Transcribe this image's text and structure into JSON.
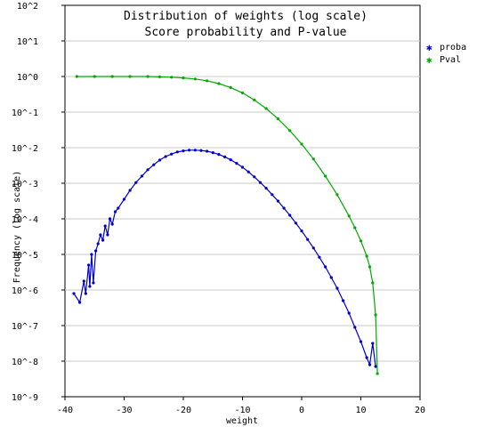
{
  "chart_data": {
    "type": "scatter",
    "title": "Distribution of weights  (log scale)",
    "subtitle": "Score probability and P-value",
    "xlabel": "weight",
    "ylabel": "Frequency (log scale)",
    "xlim": [
      -40,
      20
    ],
    "ylim": [
      -9,
      2
    ],
    "y_log_scale": true,
    "x_ticks": [
      -40,
      -30,
      -20,
      -10,
      0,
      10,
      20
    ],
    "x_tick_labels": [
      "-40",
      "-30",
      "-20",
      "-10",
      "0",
      "10",
      "20"
    ],
    "y_ticks": [
      -9,
      -8,
      -7,
      -6,
      -5,
      -4,
      -3,
      -2,
      -1,
      0,
      1,
      2
    ],
    "y_tick_labels": [
      "10^-9",
      "10^-8",
      "10^-7",
      "10^-6",
      "10^-5",
      "10^-4",
      "10^-3",
      "10^-2",
      "10^-1",
      "10^0",
      "10^1",
      "10^2"
    ],
    "grid": "horizontal",
    "legend_position": "right",
    "series": [
      {
        "name": "proba",
        "color": "#0000cc",
        "x": [
          -38.5,
          -37.5,
          -36.8,
          -36.5,
          -36.0,
          -35.8,
          -35.5,
          -35.2,
          -34.8,
          -34.4,
          -34.0,
          -33.6,
          -33.2,
          -32.8,
          -32.4,
          -32.0,
          -31.5,
          -31.0,
          -30.0,
          -29.0,
          -28.0,
          -27.0,
          -26.0,
          -25.0,
          -24.0,
          -23.0,
          -22.0,
          -21.0,
          -20.0,
          -19.0,
          -18.0,
          -17.0,
          -16.0,
          -15.0,
          -14.0,
          -13.0,
          -12.0,
          -11.0,
          -10.0,
          -9.0,
          -8.0,
          -7.0,
          -6.0,
          -5.0,
          -4.0,
          -3.0,
          -2.0,
          -1.0,
          0.0,
          1.0,
          2.0,
          3.0,
          4.0,
          5.0,
          6.0,
          7.0,
          8.0,
          9.0,
          10.0,
          11.0,
          11.5,
          12.0,
          12.5
        ],
        "y": [
          -6.1,
          -6.35,
          -5.75,
          -6.1,
          -5.3,
          -5.9,
          -5.0,
          -5.8,
          -4.9,
          -4.7,
          -4.45,
          -4.6,
          -4.2,
          -4.45,
          -4.0,
          -4.15,
          -3.8,
          -3.7,
          -3.45,
          -3.2,
          -2.98,
          -2.8,
          -2.62,
          -2.48,
          -2.35,
          -2.25,
          -2.18,
          -2.12,
          -2.09,
          -2.07,
          -2.07,
          -2.08,
          -2.1,
          -2.14,
          -2.19,
          -2.26,
          -2.34,
          -2.44,
          -2.55,
          -2.68,
          -2.82,
          -2.98,
          -3.14,
          -3.32,
          -3.5,
          -3.7,
          -3.9,
          -4.12,
          -4.34,
          -4.58,
          -4.82,
          -5.08,
          -5.35,
          -5.65,
          -5.95,
          -6.3,
          -6.65,
          -7.05,
          -7.45,
          -7.9,
          -8.1,
          -7.5,
          -8.15
        ]
      },
      {
        "name": "Pval",
        "color": "#00aa00",
        "x": [
          -38.0,
          -35.0,
          -32.0,
          -29.0,
          -26.0,
          -24.0,
          -22.0,
          -20.0,
          -18.0,
          -16.0,
          -14.0,
          -12.0,
          -10.0,
          -8.0,
          -6.0,
          -4.0,
          -2.0,
          0.0,
          2.0,
          4.0,
          6.0,
          8.0,
          9.0,
          10.0,
          11.0,
          11.5,
          12.0,
          12.5,
          12.8
        ],
        "y": [
          0.0,
          0.0,
          0.0,
          0.0,
          0.0,
          -0.01,
          -0.02,
          -0.04,
          -0.07,
          -0.12,
          -0.2,
          -0.31,
          -0.46,
          -0.66,
          -0.9,
          -1.19,
          -1.52,
          -1.9,
          -2.32,
          -2.8,
          -3.32,
          -3.92,
          -4.25,
          -4.62,
          -5.05,
          -5.35,
          -5.8,
          -6.7,
          -8.35
        ]
      }
    ]
  }
}
